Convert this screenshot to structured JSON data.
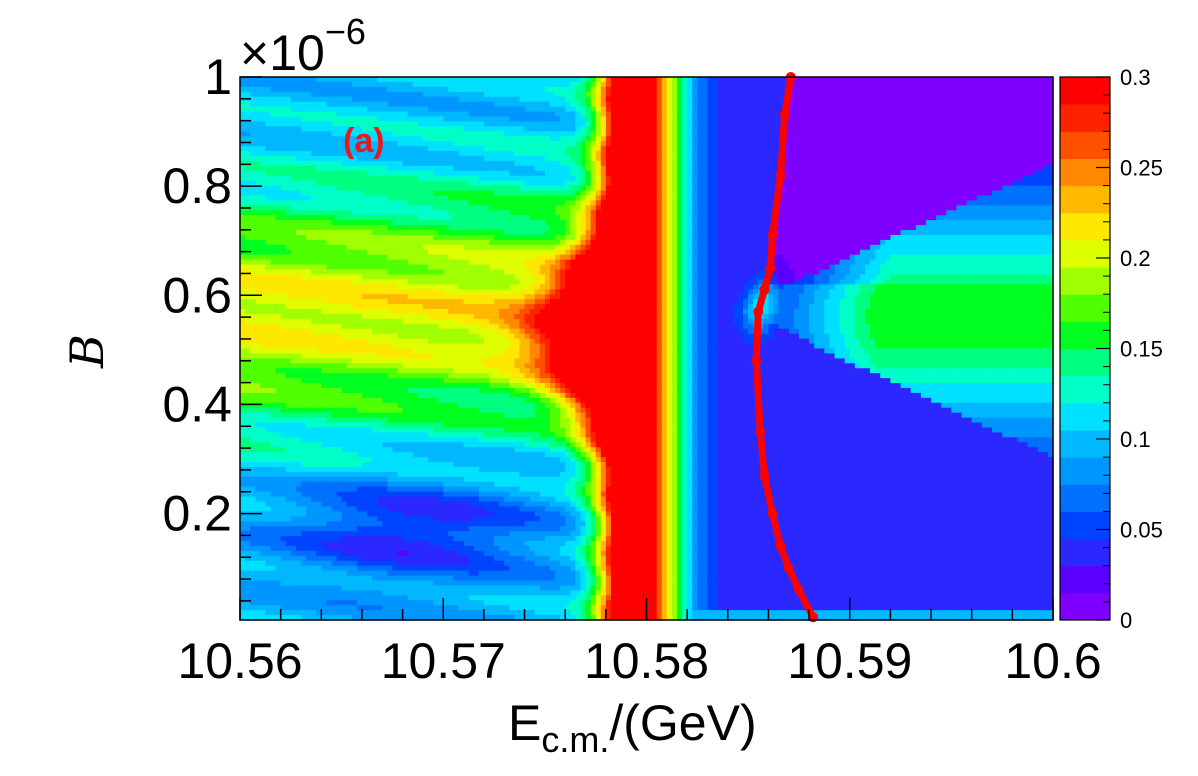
{
  "chart_data": {
    "type": "heatmap",
    "title": "",
    "panel_label": "(a)",
    "xlabel": "E",
    "xlabel_sub": "c.m.",
    "xlabel_suffix": "/(GeV)",
    "ylabel": "B",
    "y_exponent_label": "×10",
    "y_exponent_power": "−6",
    "xlim": [
      10.56,
      10.6
    ],
    "ylim": [
      0.005,
      1.0
    ],
    "zlim": [
      0,
      0.3
    ],
    "x_ticks": [
      10.56,
      10.57,
      10.58,
      10.59,
      10.6
    ],
    "x_tick_labels": [
      "10.56",
      "10.57",
      "10.58",
      "10.59",
      "10.6"
    ],
    "y_ticks": [
      0.2,
      0.4,
      0.6,
      0.8,
      1.0
    ],
    "y_tick_labels": [
      "0.2",
      "0.4",
      "0.6",
      "0.8",
      "1"
    ],
    "z_ticks": [
      0,
      0.05,
      0.1,
      0.15,
      0.2,
      0.25,
      0.3
    ],
    "z_tick_labels": [
      "0",
      "0.05",
      "0.1",
      "0.15",
      "0.2",
      "0.25",
      "0.3"
    ],
    "palette": [
      "#7f00ff",
      "#5a00ff",
      "#2a28ff",
      "#0044ff",
      "#0070ff",
      "#0096ff",
      "#00b8ff",
      "#00e0ff",
      "#00ffc8",
      "#00ff80",
      "#00ff20",
      "#50ff00",
      "#a0ff00",
      "#ddff00",
      "#ffe800",
      "#ffb800",
      "#ff8800",
      "#ff5000",
      "#ff2200",
      "#ff0000"
    ],
    "curve_color": "#ff0000",
    "panel_label_color": "#e8191b",
    "red_band": {
      "x_center": 10.5795,
      "description": "saturated z >= 0.3"
    },
    "curve": {
      "x": [
        10.5871,
        10.5868,
        10.5866,
        10.5862,
        10.5861,
        10.5858,
        10.5855,
        10.5854,
        10.5856,
        10.5858,
        10.5862,
        10.5866,
        10.587,
        10.5875,
        10.5882
      ],
      "y": [
        1.0,
        0.93,
        0.82,
        0.71,
        0.65,
        0.61,
        0.57,
        0.48,
        0.35,
        0.27,
        0.2,
        0.14,
        0.1,
        0.06,
        0.01
      ]
    }
  }
}
